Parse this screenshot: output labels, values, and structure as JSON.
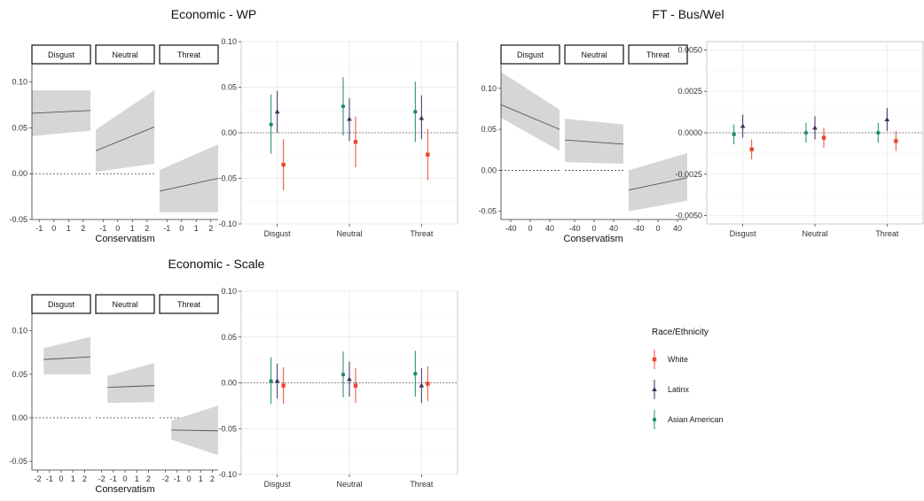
{
  "colors": {
    "white": "#e8492a",
    "latinx": "#3b2d5c",
    "asian_american": "#1b8a6b",
    "ribbon": "#d6d6d6",
    "panel_border": "#333333",
    "grid": "#ebebeb"
  },
  "legend": {
    "title": "Race/Ethnicity",
    "items": [
      {
        "label": "White",
        "color": "#e8492a",
        "shape": "square"
      },
      {
        "label": "Latinx",
        "color": "#3b2d5c",
        "shape": "triangle"
      },
      {
        "label": "Asian American",
        "color": "#1b8a6b",
        "shape": "circle"
      }
    ]
  },
  "chart_data": [
    {
      "type": "line",
      "title": "Economic - WP",
      "xlabel": "Conservatism",
      "facets": [
        "Disgust",
        "Neutral",
        "Threat"
      ],
      "x_ticks": [
        "-1",
        "0",
        "1",
        "2"
      ],
      "xlim": [
        -1.5,
        2.5
      ],
      "ylim": [
        -0.05,
        0.12
      ],
      "y_ticks": [
        -0.05,
        0.0,
        0.05,
        0.1
      ],
      "y_tick_labels": [
        "-0.05",
        "0.00",
        "0.05",
        "0.10"
      ],
      "reference_line": 0,
      "series": [
        {
          "facet": "Disgust",
          "x": [
            -1.5,
            2.5
          ],
          "y": [
            0.066,
            0.069
          ],
          "lower": [
            0.041,
            0.047
          ],
          "upper": [
            0.091,
            0.091
          ]
        },
        {
          "facet": "Neutral",
          "x": [
            -1.5,
            2.5
          ],
          "y": [
            0.025,
            0.051
          ],
          "lower": [
            0.002,
            0.011
          ],
          "upper": [
            0.048,
            0.091
          ]
        },
        {
          "facet": "Threat",
          "x": [
            -1.5,
            2.5
          ],
          "y": [
            -0.019,
            -0.005
          ],
          "lower": [
            -0.042,
            -0.042
          ],
          "upper": [
            0.004,
            0.032
          ]
        }
      ]
    },
    {
      "type": "scatter",
      "subtype": "pointrange",
      "title": "Economic - WP",
      "categories": [
        "Disgust",
        "Neutral",
        "Threat"
      ],
      "ylim": [
        -0.1,
        0.1
      ],
      "y_ticks": [
        -0.1,
        -0.05,
        0.0,
        0.05,
        0.1
      ],
      "y_tick_labels": [
        "-0.10",
        "-0.05",
        "0.00",
        "0.05",
        "0.10"
      ],
      "reference_line": 0,
      "series": [
        {
          "name": "Asian American",
          "values": [
            0.009,
            0.029,
            0.023
          ],
          "lower": [
            -0.023,
            -0.003,
            -0.01
          ],
          "upper": [
            0.042,
            0.061,
            0.056
          ]
        },
        {
          "name": "Latinx",
          "values": [
            0.023,
            0.015,
            0.016
          ],
          "lower": [
            0.0,
            -0.009,
            -0.007
          ],
          "upper": [
            0.046,
            0.038,
            0.041
          ]
        },
        {
          "name": "White",
          "values": [
            -0.035,
            -0.01,
            -0.024
          ],
          "lower": [
            -0.063,
            -0.038,
            -0.052
          ],
          "upper": [
            -0.007,
            0.018,
            0.004
          ]
        }
      ]
    },
    {
      "type": "line",
      "title": "FT - Bus/Wel",
      "xlabel": "Conservatism",
      "facets": [
        "Disgust",
        "Neutral",
        "Threat"
      ],
      "x_ticks": [
        "-40",
        "0",
        "40"
      ],
      "xlim": [
        -60,
        60
      ],
      "ylim": [
        -0.06,
        0.13
      ],
      "y_ticks": [
        -0.05,
        0.0,
        0.05,
        0.1
      ],
      "y_tick_labels": [
        "-0.05",
        "0.00",
        "0.05",
        "0.10"
      ],
      "reference_line": 0,
      "series": [
        {
          "facet": "Disgust",
          "x": [
            -60,
            60
          ],
          "y": [
            0.08,
            0.05
          ],
          "lower": [
            0.064,
            0.024
          ],
          "upper": [
            0.12,
            0.074
          ]
        },
        {
          "facet": "Neutral",
          "x": [
            -60,
            60
          ],
          "y": [
            0.037,
            0.032
          ],
          "lower": [
            0.01,
            0.008
          ],
          "upper": [
            0.063,
            0.056
          ]
        },
        {
          "facet": "Threat",
          "x": [
            -60,
            60
          ],
          "y": [
            -0.024,
            -0.009
          ],
          "lower": [
            -0.05,
            -0.037
          ],
          "upper": [
            0.0,
            0.021
          ]
        }
      ]
    },
    {
      "type": "scatter",
      "subtype": "pointrange",
      "title": "FT - Bus/Wel",
      "categories": [
        "Disgust",
        "Neutral",
        "Threat"
      ],
      "ylim": [
        -0.0055,
        0.0055
      ],
      "y_ticks": [
        -0.005,
        -0.0025,
        0.0,
        0.0025,
        0.005
      ],
      "y_tick_labels": [
        "-0.0050",
        "-0.0025",
        "0.0000",
        "0.0025",
        "0.0050"
      ],
      "reference_line": 0,
      "series": [
        {
          "name": "Asian American",
          "values": [
            -0.0001,
            0.0,
            0.0
          ],
          "lower": [
            -0.0007,
            -0.0006,
            -0.0006
          ],
          "upper": [
            0.0005,
            0.0006,
            0.0006
          ]
        },
        {
          "name": "Latinx",
          "values": [
            0.0004,
            0.0003,
            0.0008
          ],
          "lower": [
            -0.0003,
            -0.0004,
            0.0001
          ],
          "upper": [
            0.0011,
            0.001,
            0.0015
          ]
        },
        {
          "name": "White",
          "values": [
            -0.001,
            -0.0003,
            -0.0005
          ],
          "lower": [
            -0.0016,
            -0.0009,
            -0.0011
          ],
          "upper": [
            -0.0004,
            0.0003,
            0.0001
          ]
        }
      ]
    },
    {
      "type": "line",
      "title": "Economic - Scale",
      "xlabel": "Conservatism",
      "facets": [
        "Disgust",
        "Neutral",
        "Threat"
      ],
      "x_ticks": [
        "-2",
        "-1",
        "0",
        "1",
        "2"
      ],
      "xlim": [
        -2.5,
        2.5
      ],
      "ylim": [
        -0.06,
        0.12
      ],
      "y_ticks": [
        -0.05,
        0.0,
        0.05,
        0.1
      ],
      "y_tick_labels": [
        "-0.05",
        "0.00",
        "0.05",
        "0.10"
      ],
      "reference_line": 0,
      "series": [
        {
          "facet": "Disgust",
          "x": [
            -1.5,
            2.5
          ],
          "y": [
            0.067,
            0.07
          ],
          "lower": [
            0.05,
            0.05
          ],
          "upper": [
            0.08,
            0.093
          ]
        },
        {
          "facet": "Neutral",
          "x": [
            -1.5,
            2.5
          ],
          "y": [
            0.035,
            0.037
          ],
          "lower": [
            0.017,
            0.018
          ],
          "upper": [
            0.048,
            0.063
          ]
        },
        {
          "facet": "Threat",
          "x": [
            -1.5,
            2.5
          ],
          "y": [
            -0.014,
            -0.015
          ],
          "lower": [
            -0.025,
            -0.043
          ],
          "upper": [
            -0.003,
            0.014
          ]
        }
      ]
    },
    {
      "type": "scatter",
      "subtype": "pointrange",
      "title": "Economic - Scale",
      "categories": [
        "Disgust",
        "Neutral",
        "Threat"
      ],
      "ylim": [
        -0.1,
        0.1
      ],
      "y_ticks": [
        -0.1,
        -0.05,
        0.0,
        0.05,
        0.1
      ],
      "y_tick_labels": [
        "-0.10",
        "-0.05",
        "0.00",
        "0.05",
        "0.10"
      ],
      "reference_line": 0,
      "series": [
        {
          "name": "Asian American",
          "values": [
            0.002,
            0.009,
            0.01
          ],
          "lower": [
            -0.023,
            -0.016,
            -0.015
          ],
          "upper": [
            0.028,
            0.034,
            0.035
          ]
        },
        {
          "name": "Latinx",
          "values": [
            0.002,
            0.004,
            -0.003
          ],
          "lower": [
            -0.017,
            -0.015,
            -0.022
          ],
          "upper": [
            0.021,
            0.023,
            0.016
          ]
        },
        {
          "name": "White",
          "values": [
            -0.003,
            -0.003,
            -0.001
          ],
          "lower": [
            -0.023,
            -0.022,
            -0.02
          ],
          "upper": [
            0.017,
            0.016,
            0.018
          ]
        }
      ]
    }
  ]
}
